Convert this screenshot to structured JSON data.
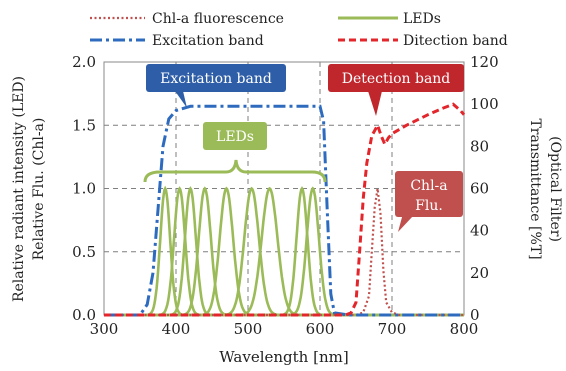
{
  "chart_data": {
    "type": "line",
    "xlabel": "Wavelength [nm]",
    "ylabel_left_lines": [
      "Relative radiant intensity (LED)",
      "Relative Flu. (Chl-a)"
    ],
    "ylabel_right_lines": [
      "Transmittance [%T]",
      "(Optical Filter)"
    ],
    "xlim": [
      300,
      800
    ],
    "ylim_left": [
      0,
      2.0
    ],
    "ylim_right": [
      0,
      120
    ],
    "x_ticks": [
      300,
      400,
      500,
      600,
      700,
      800
    ],
    "y_ticks_left": [
      "0.0",
      "0.5",
      "1.0",
      "1.5",
      "2.0"
    ],
    "y_ticks_right": [
      "0",
      "20",
      "40",
      "60",
      "80",
      "100",
      "120"
    ],
    "grid": "dashed",
    "legend_position": "top",
    "legend": [
      {
        "label": "Chl-a fluorescence",
        "series": "chl"
      },
      {
        "label": "LEDs",
        "series": "led"
      },
      {
        "label": "Excitation band",
        "series": "exc"
      },
      {
        "label": "Ditection band",
        "series": "det"
      }
    ],
    "series": [
      {
        "key": "led",
        "name": "LEDs",
        "color": "#9bbb59",
        "axis": "left",
        "peaks_nm": [
          385,
          405,
          420,
          440,
          470,
          505,
          530,
          575,
          590
        ],
        "fwhm_nm": [
          16,
          18,
          18,
          20,
          22,
          24,
          26,
          18,
          20
        ],
        "peak_value": 1.0
      },
      {
        "key": "exc",
        "name": "Excitation band",
        "color": "#2e6bbf",
        "axis": "right",
        "points": [
          [
            300,
            0
          ],
          [
            350,
            0
          ],
          [
            360,
            5
          ],
          [
            368,
            20
          ],
          [
            375,
            50
          ],
          [
            382,
            80
          ],
          [
            390,
            93
          ],
          [
            400,
            97
          ],
          [
            420,
            99
          ],
          [
            500,
            99
          ],
          [
            580,
            99
          ],
          [
            600,
            99
          ],
          [
            605,
            92
          ],
          [
            610,
            50
          ],
          [
            615,
            10
          ],
          [
            620,
            1
          ],
          [
            640,
            0
          ],
          [
            800,
            0
          ]
        ]
      },
      {
        "key": "det",
        "name": "Ditection band",
        "color": "#e3262b",
        "axis": "right",
        "points": [
          [
            300,
            0
          ],
          [
            635,
            0
          ],
          [
            643,
            1
          ],
          [
            650,
            6
          ],
          [
            655,
            30
          ],
          [
            660,
            55
          ],
          [
            665,
            72
          ],
          [
            672,
            85
          ],
          [
            680,
            90
          ],
          [
            685,
            85
          ],
          [
            690,
            81
          ],
          [
            695,
            84
          ],
          [
            700,
            86
          ],
          [
            720,
            90
          ],
          [
            750,
            95
          ],
          [
            770,
            98
          ],
          [
            785,
            100
          ],
          [
            795,
            97
          ],
          [
            800,
            95
          ]
        ]
      },
      {
        "key": "chl",
        "name": "Chl-a fluorescence",
        "color": "#c0504d",
        "axis": "left",
        "points": [
          [
            300,
            0
          ],
          [
            650,
            0
          ],
          [
            660,
            0.02
          ],
          [
            668,
            0.15
          ],
          [
            672,
            0.5
          ],
          [
            676,
            0.85
          ],
          [
            680,
            1.0
          ],
          [
            684,
            0.8
          ],
          [
            688,
            0.35
          ],
          [
            692,
            0.1
          ],
          [
            700,
            0.02
          ],
          [
            710,
            0
          ],
          [
            800,
            0
          ]
        ]
      }
    ],
    "annotations": {
      "excitation": "Excitation band",
      "leds": "LEDs",
      "detection": "Detection band",
      "chla_line1": "Chl-a",
      "chla_line2": "Flu."
    }
  }
}
